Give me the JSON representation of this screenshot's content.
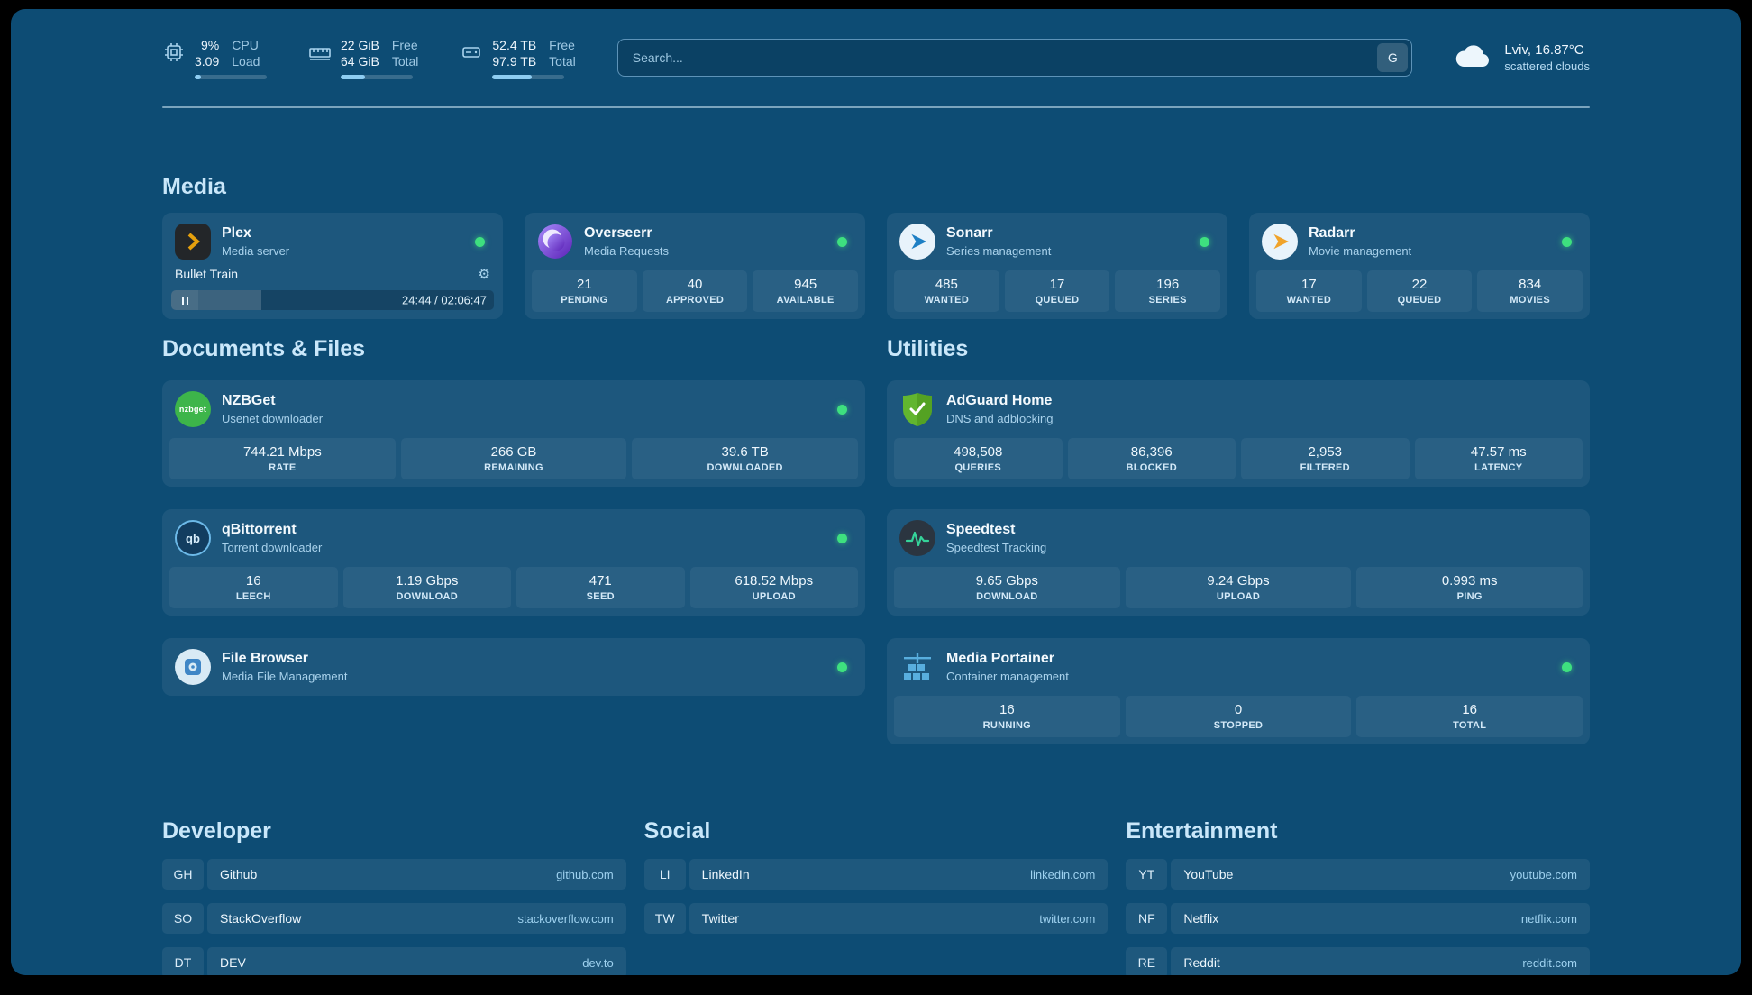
{
  "theme": {
    "background": "#0d4c74",
    "accent": "#9fd2f0",
    "status_green": "#3ee07f",
    "plex_amber": "#e5a00d"
  },
  "topbar": {
    "stats": [
      {
        "icon": "cpu-icon",
        "values": [
          "9%",
          "3.09"
        ],
        "labels": [
          "CPU",
          "Load"
        ],
        "progress_pct": 9
      },
      {
        "icon": "memory-icon",
        "values": [
          "22 GiB",
          "64 GiB"
        ],
        "labels": [
          "Free",
          "Total"
        ],
        "progress_pct": 34
      },
      {
        "icon": "disk-icon",
        "values": [
          "52.4 TB",
          "97.9 TB"
        ],
        "labels": [
          "Free",
          "Total"
        ],
        "progress_pct": 54
      }
    ],
    "search": {
      "placeholder": "Search...",
      "button_label": "G"
    },
    "weather": {
      "icon": "cloud-icon",
      "location": "Lviv, 16.87°C",
      "condition": "scattered clouds"
    }
  },
  "sections": {
    "media": {
      "title": "Media",
      "plex": {
        "icon": "plex-icon",
        "name": "Plex",
        "subtitle": "Media server",
        "now_playing": "Bullet Train",
        "time": "24:44 / 02:06:47",
        "progress_pct": 19.5
      },
      "overseerr": {
        "icon": "overseerr-icon",
        "name": "Overseerr",
        "subtitle": "Media Requests",
        "stats": [
          {
            "value": "21",
            "label": "PENDING"
          },
          {
            "value": "40",
            "label": "APPROVED"
          },
          {
            "value": "945",
            "label": "AVAILABLE"
          }
        ]
      },
      "sonarr": {
        "icon": "sonarr-icon",
        "name": "Sonarr",
        "subtitle": "Series management",
        "stats": [
          {
            "value": "485",
            "label": "WANTED"
          },
          {
            "value": "17",
            "label": "QUEUED"
          },
          {
            "value": "196",
            "label": "SERIES"
          }
        ]
      },
      "radarr": {
        "icon": "radarr-icon",
        "name": "Radarr",
        "subtitle": "Movie management",
        "stats": [
          {
            "value": "17",
            "label": "WANTED"
          },
          {
            "value": "22",
            "label": "QUEUED"
          },
          {
            "value": "834",
            "label": "MOVIES"
          }
        ]
      }
    },
    "documents": {
      "title": "Documents & Files",
      "nzbget": {
        "icon": "nzbget-icon",
        "icon_text": "nzbget",
        "name": "NZBGet",
        "subtitle": "Usenet downloader",
        "stats": [
          {
            "value": "744.21 Mbps",
            "label": "RATE"
          },
          {
            "value": "266 GB",
            "label": "REMAINING"
          },
          {
            "value": "39.6 TB",
            "label": "DOWNLOADED"
          }
        ]
      },
      "qbittorrent": {
        "icon": "qbittorrent-icon",
        "icon_text": "qb",
        "name": "qBittorrent",
        "subtitle": "Torrent downloader",
        "stats": [
          {
            "value": "16",
            "label": "LEECH"
          },
          {
            "value": "1.19 Gbps",
            "label": "DOWNLOAD"
          },
          {
            "value": "471",
            "label": "SEED"
          },
          {
            "value": "618.52 Mbps",
            "label": "UPLOAD"
          }
        ]
      },
      "filebrowser": {
        "icon": "filebrowser-icon",
        "name": "File Browser",
        "subtitle": "Media File Management"
      }
    },
    "utilities": {
      "title": "Utilities",
      "adguard": {
        "icon": "adguard-icon",
        "name": "AdGuard Home",
        "subtitle": "DNS and adblocking",
        "stats": [
          {
            "value": "498,508",
            "label": "QUERIES"
          },
          {
            "value": "86,396",
            "label": "BLOCKED"
          },
          {
            "value": "2,953",
            "label": "FILTERED"
          },
          {
            "value": "47.57 ms",
            "label": "LATENCY"
          }
        ]
      },
      "speedtest": {
        "icon": "speedtest-icon",
        "name": "Speedtest",
        "subtitle": "Speedtest Tracking",
        "stats": [
          {
            "value": "9.65 Gbps",
            "label": "DOWNLOAD"
          },
          {
            "value": "9.24 Gbps",
            "label": "UPLOAD"
          },
          {
            "value": "0.993 ms",
            "label": "PING"
          }
        ]
      },
      "portainer": {
        "icon": "portainer-icon",
        "name": "Media Portainer",
        "subtitle": "Container management",
        "stats": [
          {
            "value": "16",
            "label": "RUNNING"
          },
          {
            "value": "0",
            "label": "STOPPED"
          },
          {
            "value": "16",
            "label": "TOTAL"
          }
        ]
      }
    },
    "bookmarks": {
      "developer": {
        "title": "Developer",
        "items": [
          {
            "abbr": "GH",
            "name": "Github",
            "url": "github.com"
          },
          {
            "abbr": "SO",
            "name": "StackOverflow",
            "url": "stackoverflow.com"
          },
          {
            "abbr": "DT",
            "name": "DEV",
            "url": "dev.to"
          }
        ]
      },
      "social": {
        "title": "Social",
        "items": [
          {
            "abbr": "LI",
            "name": "LinkedIn",
            "url": "linkedin.com"
          },
          {
            "abbr": "TW",
            "name": "Twitter",
            "url": "twitter.com"
          }
        ]
      },
      "entertainment": {
        "title": "Entertainment",
        "items": [
          {
            "abbr": "YT",
            "name": "YouTube",
            "url": "youtube.com"
          },
          {
            "abbr": "NF",
            "name": "Netflix",
            "url": "netflix.com"
          },
          {
            "abbr": "RE",
            "name": "Reddit",
            "url": "reddit.com"
          }
        ]
      }
    }
  }
}
